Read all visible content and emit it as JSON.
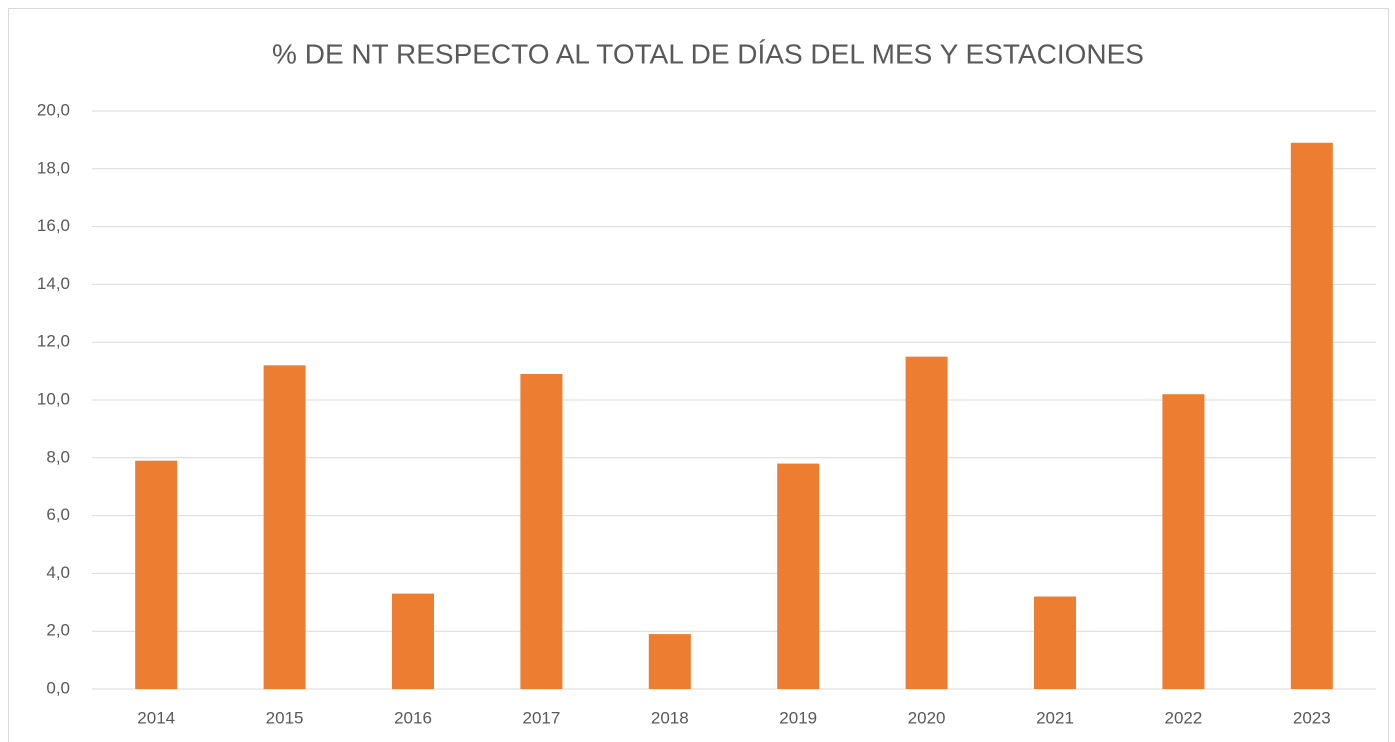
{
  "chart_data": {
    "type": "bar",
    "title": "% DE NT RESPECTO AL TOTAL DE DÍAS DEL MES Y ESTACIONES",
    "categories": [
      "2014",
      "2015",
      "2016",
      "2017",
      "2018",
      "2019",
      "2020",
      "2021",
      "2022",
      "2023"
    ],
    "values": [
      7.9,
      11.2,
      3.3,
      10.9,
      1.9,
      7.8,
      11.5,
      3.2,
      10.2,
      18.9
    ],
    "color": "#ed7d31",
    "ylim": [
      0,
      20
    ],
    "yticks": [
      {
        "value": 0,
        "label": "0,0"
      },
      {
        "value": 2,
        "label": "2,0"
      },
      {
        "value": 4,
        "label": "4,0"
      },
      {
        "value": 6,
        "label": "6,0"
      },
      {
        "value": 8,
        "label": "8,0"
      },
      {
        "value": 10,
        "label": "10,0"
      },
      {
        "value": 12,
        "label": "12,0"
      },
      {
        "value": 14,
        "label": "14,0"
      },
      {
        "value": 16,
        "label": "16,0"
      },
      {
        "value": 18,
        "label": "18,0"
      },
      {
        "value": 20,
        "label": "20,0"
      }
    ],
    "grid": true
  }
}
